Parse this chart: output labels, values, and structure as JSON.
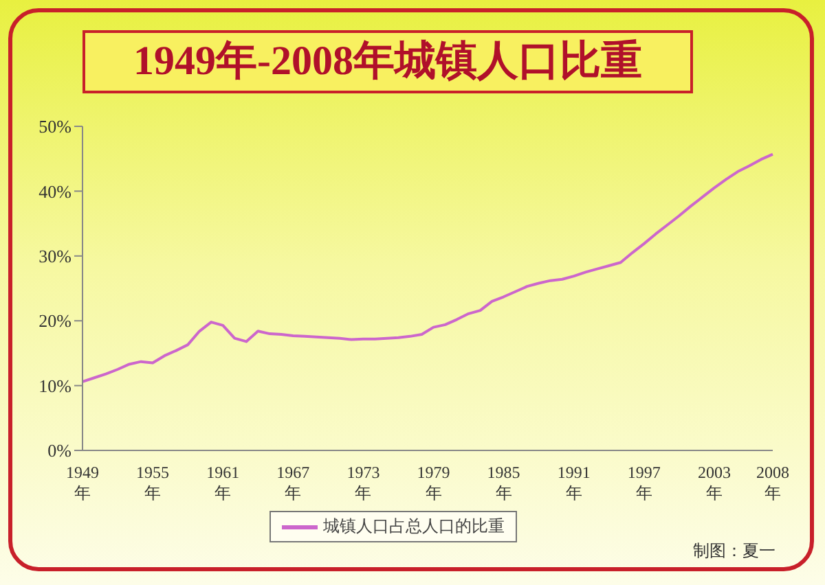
{
  "chart_data": {
    "type": "line",
    "title": "1949年-2008年城镇人口比重",
    "categories": [
      "1949年",
      null,
      null,
      null,
      null,
      null,
      "1955年",
      null,
      null,
      null,
      null,
      null,
      "1961年",
      null,
      null,
      null,
      null,
      null,
      "1967年",
      null,
      null,
      null,
      null,
      null,
      "1973年",
      null,
      null,
      null,
      null,
      null,
      "1979年",
      null,
      null,
      null,
      null,
      null,
      "1985年",
      null,
      null,
      null,
      null,
      null,
      "1991年",
      null,
      null,
      null,
      null,
      null,
      "1997年",
      null,
      null,
      null,
      null,
      null,
      "2003年",
      null,
      null,
      null,
      null,
      "2008年"
    ],
    "series": [
      {
        "name": "城镇人口占总人口的比重",
        "color": "#cc66cc",
        "values": [
          10.6,
          11.2,
          11.8,
          12.5,
          13.3,
          13.7,
          13.5,
          14.6,
          15.4,
          16.3,
          18.4,
          19.8,
          19.3,
          17.3,
          16.8,
          18.4,
          18.0,
          17.9,
          17.7,
          17.6,
          17.5,
          17.4,
          17.3,
          17.1,
          17.2,
          17.2,
          17.3,
          17.4,
          17.6,
          17.9,
          19.0,
          19.4,
          20.2,
          21.1,
          21.6,
          23.0,
          23.7,
          24.5,
          25.3,
          25.8,
          26.2,
          26.4,
          26.9,
          27.5,
          28.0,
          28.5,
          29.0,
          30.5,
          31.9,
          33.4,
          34.8,
          36.2,
          37.7,
          39.1,
          40.5,
          41.8,
          43.0,
          43.9,
          44.9,
          45.7
        ]
      }
    ],
    "ylim": [
      0,
      50
    ],
    "yticks": [
      {
        "value": 0,
        "label": "0%"
      },
      {
        "value": 10,
        "label": "10%"
      },
      {
        "value": 20,
        "label": "20%"
      },
      {
        "value": 30,
        "label": "30%"
      },
      {
        "value": 40,
        "label": "40%"
      },
      {
        "value": 50,
        "label": "50%"
      }
    ],
    "legend": "bottom",
    "grid": false,
    "marker": "none",
    "line_style": "solid",
    "annotations": [
      "制图：夏一"
    ]
  }
}
